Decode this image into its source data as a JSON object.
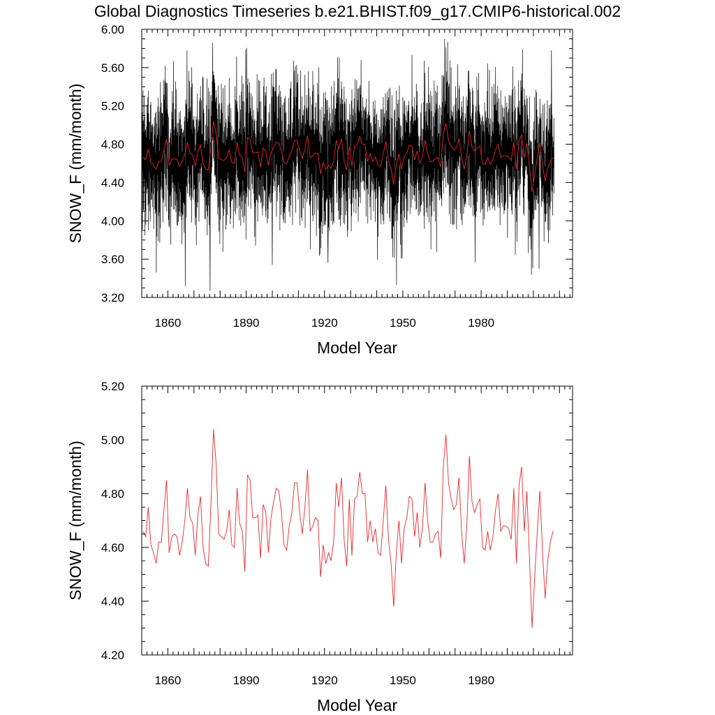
{
  "figure_title": "Global Diagnostics Timeseries b.e21.BHIST.f09_g17.CMIP6-historical.002",
  "colors": {
    "monthly": "#000000",
    "annual": "#e8262b"
  },
  "chart_data": [
    {
      "type": "line",
      "name": "monthly-and-annual",
      "ylabel": "SNOW_F (mm/month)",
      "xlabel": "Model Year",
      "xlim": [
        1850,
        2015
      ],
      "ylim": [
        3.2,
        6.0
      ],
      "xticks": [
        1860,
        1890,
        1920,
        1950,
        1980
      ],
      "xtick_labels": [
        "1860",
        "1890",
        "1920",
        "1950",
        "1980"
      ],
      "yticks": [
        3.2,
        3.6,
        4.0,
        4.4,
        4.8,
        5.2,
        5.6,
        6.0
      ],
      "ytick_labels": [
        "3.20",
        "3.60",
        "4.00",
        "4.40",
        "4.80",
        "5.20",
        "5.60",
        "6.00"
      ],
      "series": [
        {
          "name": "monthly",
          "color": "#000000",
          "resolution": "monthly",
          "note": "monthly values 1850-2014 oscillate about ~4.7, range ~3.27-5.87",
          "extremes": [
            {
              "x": 1866.7,
              "y": 3.32
            },
            {
              "x": 1876.2,
              "y": 3.27
            },
            {
              "x": 1947.6,
              "y": 3.33
            },
            {
              "x": 1967.2,
              "y": 5.87
            },
            {
              "x": 1889.8,
              "y": 5.79
            },
            {
              "x": 2006.9,
              "y": 5.78
            },
            {
              "x": 1867.3,
              "y": 5.78
            },
            {
              "x": 1900.0,
              "y": 3.54
            },
            {
              "x": 1855.6,
              "y": 3.46
            },
            {
              "x": 2002.2,
              "y": 3.5
            },
            {
              "x": 1921.3,
              "y": 3.56
            },
            {
              "x": 1977.7,
              "y": 3.57
            }
          ]
        },
        {
          "name": "annual",
          "color": "#e8262b",
          "ref": "annual_values"
        }
      ]
    },
    {
      "type": "line",
      "name": "annual-only",
      "ylabel": "SNOW_F (mm/month)",
      "xlabel": "Model Year",
      "xlim": [
        1850,
        2015
      ],
      "ylim": [
        4.2,
        5.2
      ],
      "xticks": [
        1860,
        1890,
        1920,
        1950,
        1980
      ],
      "xtick_labels": [
        "1860",
        "1890",
        "1920",
        "1950",
        "1980"
      ],
      "yticks": [
        4.2,
        4.4,
        4.6,
        4.8,
        5.0,
        5.2
      ],
      "ytick_labels": [
        "4.20",
        "4.40",
        "4.60",
        "4.80",
        "5.00",
        "5.20"
      ],
      "series": [
        {
          "name": "annual",
          "color": "#e8262b",
          "ref": "annual_values"
        }
      ]
    }
  ],
  "annual_years_start": 1850,
  "annual_values": [
    4.66,
    4.64,
    4.75,
    4.61,
    4.58,
    4.54,
    4.62,
    4.62,
    4.74,
    4.85,
    4.58,
    4.64,
    4.65,
    4.64,
    4.57,
    4.62,
    4.7,
    4.82,
    4.71,
    4.69,
    4.57,
    4.72,
    4.79,
    4.6,
    4.54,
    4.53,
    4.76,
    5.04,
    4.91,
    4.65,
    4.64,
    4.63,
    4.66,
    4.74,
    4.61,
    4.6,
    4.82,
    4.69,
    4.66,
    4.51,
    4.87,
    4.85,
    4.71,
    4.71,
    4.72,
    4.56,
    4.76,
    4.73,
    4.58,
    4.71,
    4.77,
    4.82,
    4.81,
    4.73,
    4.61,
    4.59,
    4.68,
    4.73,
    4.84,
    4.84,
    4.73,
    4.65,
    4.75,
    4.89,
    4.66,
    4.68,
    4.71,
    4.7,
    4.49,
    4.61,
    4.54,
    4.58,
    4.55,
    4.62,
    4.84,
    4.75,
    4.86,
    4.63,
    4.53,
    4.78,
    4.57,
    4.78,
    4.79,
    4.88,
    4.8,
    4.8,
    4.62,
    4.7,
    4.62,
    4.67,
    4.58,
    4.57,
    4.7,
    4.83,
    4.63,
    4.54,
    4.38,
    4.58,
    4.7,
    4.54,
    4.67,
    4.71,
    4.79,
    4.78,
    4.64,
    4.73,
    4.6,
    4.67,
    4.84,
    4.7,
    4.62,
    4.62,
    4.65,
    4.66,
    4.56,
    4.9,
    5.02,
    4.84,
    4.78,
    4.74,
    4.76,
    4.86,
    4.66,
    4.54,
    4.68,
    4.94,
    4.77,
    4.73,
    4.76,
    4.78,
    4.6,
    4.59,
    4.66,
    4.59,
    4.64,
    4.74,
    4.8,
    4.66,
    4.68,
    4.68,
    4.67,
    4.63,
    4.82,
    4.54,
    4.83,
    4.9,
    4.66,
    4.81,
    4.56,
    4.3,
    4.49,
    4.66,
    4.81,
    4.58,
    4.41,
    4.55,
    4.62,
    4.66
  ]
}
